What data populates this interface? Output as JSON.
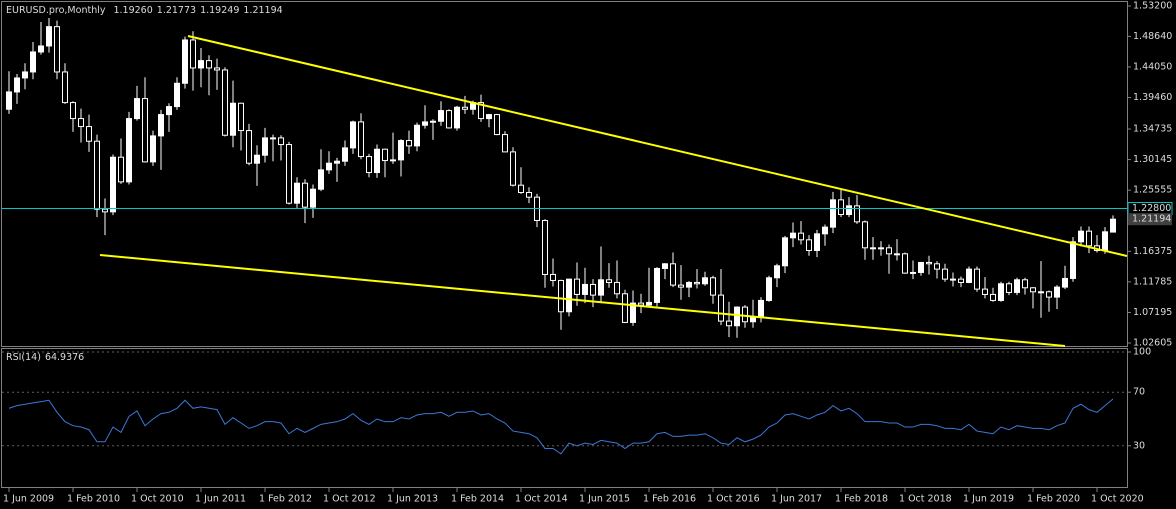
{
  "chart_data": {
    "type": "candlestick",
    "title": "EURUSD.pro,Monthly",
    "ohlc_header": [
      {
        "value": 1.1926,
        "label": "1.19260"
      },
      {
        "value": 1.21773,
        "label": "1.21773"
      },
      {
        "value": 1.19249,
        "label": "1.19249"
      },
      {
        "value": 1.21194,
        "label": "1.21194"
      }
    ],
    "categories": [
      "1 Jun 2009",
      null,
      null,
      null,
      null,
      null,
      null,
      null,
      "1 Feb 2010",
      null,
      null,
      null,
      null,
      null,
      null,
      null,
      "1 Oct 2010",
      null,
      null,
      null,
      null,
      null,
      null,
      null,
      "1 Jun 2011",
      null,
      null,
      null,
      null,
      null,
      null,
      null,
      "1 Feb 2012",
      null,
      null,
      null,
      null,
      null,
      null,
      null,
      "1 Oct 2012",
      null,
      null,
      null,
      null,
      null,
      null,
      null,
      "1 Jun 2013",
      null,
      null,
      null,
      null,
      null,
      null,
      null,
      "1 Feb 2014",
      null,
      null,
      null,
      null,
      null,
      null,
      null,
      "1 Oct 2014",
      null,
      null,
      null,
      null,
      null,
      null,
      null,
      "1 Jun 2015",
      null,
      null,
      null,
      null,
      null,
      null,
      null,
      "1 Feb 2016",
      null,
      null,
      null,
      null,
      null,
      null,
      null,
      "1 Oct 2016",
      null,
      null,
      null,
      null,
      null,
      null,
      null,
      "1 Jun 2017",
      null,
      null,
      null,
      null,
      null,
      null,
      null,
      "1 Feb 2018",
      null,
      null,
      null,
      null,
      null,
      null,
      null,
      "1 Oct 2018",
      null,
      null,
      null,
      null,
      null,
      null,
      null,
      "1 Jun 2019",
      null,
      null,
      null,
      null,
      null,
      null,
      null,
      "1 Feb 2020",
      null,
      null,
      null,
      null,
      null,
      null,
      null,
      "1 Oct 2020",
      null,
      null
    ],
    "candles": [
      [
        1.377,
        1.434,
        1.37,
        1.403
      ],
      [
        1.403,
        1.43,
        1.385,
        1.424
      ],
      [
        1.424,
        1.446,
        1.407,
        1.433
      ],
      [
        1.433,
        1.478,
        1.422,
        1.463
      ],
      [
        1.463,
        1.508,
        1.459,
        1.472
      ],
      [
        1.472,
        1.514,
        1.462,
        1.501
      ],
      [
        1.501,
        1.51,
        1.422,
        1.433
      ],
      [
        1.433,
        1.446,
        1.385,
        1.387
      ],
      [
        1.387,
        1.389,
        1.343,
        1.363
      ],
      [
        1.363,
        1.378,
        1.327,
        1.351
      ],
      [
        1.351,
        1.369,
        1.313,
        1.329
      ],
      [
        1.329,
        1.339,
        1.215,
        1.227
      ],
      [
        1.227,
        1.243,
        1.188,
        1.223
      ],
      [
        1.223,
        1.309,
        1.218,
        1.305
      ],
      [
        1.305,
        1.333,
        1.265,
        1.268
      ],
      [
        1.268,
        1.373,
        1.264,
        1.363
      ],
      [
        1.363,
        1.412,
        1.36,
        1.393
      ],
      [
        1.393,
        1.425,
        1.297,
        1.298
      ],
      [
        1.298,
        1.345,
        1.292,
        1.337
      ],
      [
        1.337,
        1.376,
        1.286,
        1.369
      ],
      [
        1.369,
        1.386,
        1.343,
        1.381
      ],
      [
        1.381,
        1.425,
        1.376,
        1.416
      ],
      [
        1.416,
        1.486,
        1.408,
        1.481
      ],
      [
        1.481,
        1.494,
        1.405,
        1.439
      ],
      [
        1.439,
        1.469,
        1.41,
        1.45
      ],
      [
        1.45,
        1.458,
        1.398,
        1.439
      ],
      [
        1.439,
        1.453,
        1.406,
        1.436
      ],
      [
        1.436,
        1.44,
        1.336,
        1.338
      ],
      [
        1.338,
        1.42,
        1.32,
        1.386
      ],
      [
        1.386,
        1.387,
        1.315,
        1.345
      ],
      [
        1.345,
        1.355,
        1.293,
        1.296
      ],
      [
        1.296,
        1.323,
        1.262,
        1.308
      ],
      [
        1.308,
        1.349,
        1.297,
        1.334
      ],
      [
        1.334,
        1.339,
        1.299,
        1.334
      ],
      [
        1.334,
        1.338,
        1.3,
        1.324
      ],
      [
        1.324,
        1.328,
        1.234,
        1.236
      ],
      [
        1.236,
        1.275,
        1.229,
        1.266
      ],
      [
        1.266,
        1.272,
        1.206,
        1.23
      ],
      [
        1.23,
        1.264,
        1.214,
        1.257
      ],
      [
        1.257,
        1.317,
        1.254,
        1.286
      ],
      [
        1.286,
        1.314,
        1.28,
        1.296
      ],
      [
        1.296,
        1.304,
        1.268,
        1.299
      ],
      [
        1.299,
        1.33,
        1.292,
        1.319
      ],
      [
        1.319,
        1.36,
        1.31,
        1.358
      ],
      [
        1.358,
        1.371,
        1.302,
        1.306
      ],
      [
        1.306,
        1.31,
        1.275,
        1.282
      ],
      [
        1.282,
        1.324,
        1.274,
        1.317
      ],
      [
        1.317,
        1.318,
        1.275,
        1.3
      ],
      [
        1.3,
        1.342,
        1.295,
        1.301
      ],
      [
        1.301,
        1.332,
        1.276,
        1.33
      ],
      [
        1.33,
        1.345,
        1.31,
        1.322
      ],
      [
        1.322,
        1.357,
        1.314,
        1.353
      ],
      [
        1.353,
        1.383,
        1.348,
        1.358
      ],
      [
        1.358,
        1.362,
        1.331,
        1.359
      ],
      [
        1.359,
        1.389,
        1.352,
        1.375
      ],
      [
        1.375,
        1.377,
        1.348,
        1.349
      ],
      [
        1.349,
        1.382,
        1.345,
        1.38
      ],
      [
        1.38,
        1.397,
        1.37,
        1.377
      ],
      [
        1.377,
        1.39,
        1.369,
        1.387
      ],
      [
        1.387,
        1.399,
        1.358,
        1.363
      ],
      [
        1.363,
        1.37,
        1.35,
        1.369
      ],
      [
        1.369,
        1.37,
        1.338,
        1.339
      ],
      [
        1.339,
        1.344,
        1.313,
        1.313
      ],
      [
        1.313,
        1.32,
        1.261,
        1.263
      ],
      [
        1.263,
        1.29,
        1.25,
        1.252
      ],
      [
        1.252,
        1.26,
        1.236,
        1.245
      ],
      [
        1.245,
        1.25,
        1.2,
        1.21
      ],
      [
        1.21,
        1.212,
        1.109,
        1.129
      ],
      [
        1.129,
        1.153,
        1.111,
        1.12
      ],
      [
        1.12,
        1.121,
        1.046,
        1.073
      ],
      [
        1.073,
        1.122,
        1.066,
        1.122
      ],
      [
        1.122,
        1.147,
        1.082,
        1.099
      ],
      [
        1.099,
        1.139,
        1.086,
        1.114
      ],
      [
        1.114,
        1.122,
        1.08,
        1.098
      ],
      [
        1.098,
        1.171,
        1.086,
        1.121
      ],
      [
        1.121,
        1.146,
        1.109,
        1.117
      ],
      [
        1.117,
        1.15,
        1.093,
        1.1
      ],
      [
        1.1,
        1.106,
        1.056,
        1.057
      ],
      [
        1.057,
        1.105,
        1.052,
        1.086
      ],
      [
        1.086,
        1.1,
        1.071,
        1.083
      ],
      [
        1.083,
        1.139,
        1.081,
        1.087
      ],
      [
        1.087,
        1.14,
        1.081,
        1.138
      ],
      [
        1.138,
        1.146,
        1.122,
        1.145
      ],
      [
        1.145,
        1.162,
        1.11,
        1.113
      ],
      [
        1.113,
        1.143,
        1.091,
        1.11
      ],
      [
        1.11,
        1.119,
        1.095,
        1.117
      ],
      [
        1.117,
        1.137,
        1.108,
        1.115
      ],
      [
        1.115,
        1.133,
        1.112,
        1.124
      ],
      [
        1.124,
        1.127,
        1.085,
        1.098
      ],
      [
        1.098,
        1.137,
        1.053,
        1.059
      ],
      [
        1.059,
        1.088,
        1.035,
        1.052
      ],
      [
        1.052,
        1.081,
        1.034,
        1.08
      ],
      [
        1.08,
        1.083,
        1.049,
        1.058
      ],
      [
        1.058,
        1.091,
        1.049,
        1.065
      ],
      [
        1.065,
        1.095,
        1.057,
        1.09
      ],
      [
        1.09,
        1.127,
        1.088,
        1.124
      ],
      [
        1.124,
        1.145,
        1.11,
        1.142
      ],
      [
        1.142,
        1.187,
        1.131,
        1.184
      ],
      [
        1.184,
        1.207,
        1.17,
        1.191
      ],
      [
        1.191,
        1.209,
        1.174,
        1.181
      ],
      [
        1.181,
        1.188,
        1.157,
        1.165
      ],
      [
        1.165,
        1.196,
        1.155,
        1.19
      ],
      [
        1.19,
        1.204,
        1.172,
        1.2
      ],
      [
        1.2,
        1.253,
        1.191,
        1.241
      ],
      [
        1.241,
        1.256,
        1.215,
        1.219
      ],
      [
        1.219,
        1.245,
        1.215,
        1.232
      ],
      [
        1.232,
        1.248,
        1.205,
        1.208
      ],
      [
        1.208,
        1.21,
        1.151,
        1.169
      ],
      [
        1.169,
        1.185,
        1.151,
        1.168
      ],
      [
        1.168,
        1.179,
        1.157,
        1.169
      ],
      [
        1.169,
        1.174,
        1.13,
        1.16
      ],
      [
        1.16,
        1.182,
        1.15,
        1.16
      ],
      [
        1.16,
        1.162,
        1.13,
        1.131
      ],
      [
        1.131,
        1.15,
        1.122,
        1.132
      ],
      [
        1.132,
        1.147,
        1.127,
        1.147
      ],
      [
        1.147,
        1.157,
        1.129,
        1.145
      ],
      [
        1.145,
        1.149,
        1.123,
        1.137
      ],
      [
        1.137,
        1.145,
        1.118,
        1.122
      ],
      [
        1.122,
        1.132,
        1.111,
        1.122
      ],
      [
        1.122,
        1.126,
        1.11,
        1.117
      ],
      [
        1.117,
        1.141,
        1.116,
        1.137
      ],
      [
        1.137,
        1.141,
        1.103,
        1.107
      ],
      [
        1.107,
        1.125,
        1.093,
        1.099
      ],
      [
        1.099,
        1.109,
        1.088,
        1.09
      ],
      [
        1.09,
        1.118,
        1.088,
        1.115
      ],
      [
        1.115,
        1.118,
        1.098,
        1.102
      ],
      [
        1.102,
        1.124,
        1.098,
        1.121
      ],
      [
        1.121,
        1.124,
        1.099,
        1.109
      ],
      [
        1.109,
        1.11,
        1.078,
        1.103
      ],
      [
        1.103,
        1.149,
        1.064,
        1.103
      ],
      [
        1.103,
        1.105,
        1.073,
        1.095
      ],
      [
        1.095,
        1.113,
        1.077,
        1.11
      ],
      [
        1.11,
        1.142,
        1.107,
        1.123
      ],
      [
        1.123,
        1.185,
        1.118,
        1.178
      ],
      [
        1.178,
        1.201,
        1.171,
        1.194
      ],
      [
        1.194,
        1.201,
        1.161,
        1.172
      ],
      [
        1.172,
        1.188,
        1.162,
        1.165
      ],
      [
        1.165,
        1.2,
        1.16,
        1.193
      ],
      [
        1.1926,
        1.21773,
        1.19249,
        1.21194
      ]
    ],
    "bull_color": "#ffffff",
    "bear_color": "#000000",
    "wick_color": "#ffffff",
    "ylim": [
      1.0216,
      1.538
    ],
    "yticks": [
      {
        "value": 1.532,
        "label": "1.53200"
      },
      {
        "value": 1.4864,
        "label": "1.48640"
      },
      {
        "value": 1.4405,
        "label": "1.44050"
      },
      {
        "value": 1.3946,
        "label": "1.39460"
      },
      1.34735,
      1.30145,
      1.25555,
      1.16375,
      1.11785,
      1.07195,
      1.02605
    ],
    "bid_line": {
      "value": 1.228,
      "label": "1.22800",
      "color": "#00c8c8"
    },
    "rsi": {
      "name": "RSI(14)",
      "color": "#3c78d8",
      "ylim": [
        0,
        100
      ],
      "yticks": [
        100,
        70,
        30
      ],
      "values": [
        58,
        60,
        61,
        62,
        63,
        64,
        55,
        48,
        45,
        44,
        42,
        33,
        33,
        44,
        40,
        52,
        56,
        45,
        50,
        54,
        55,
        58,
        64,
        58,
        59,
        58,
        57,
        46,
        51,
        47,
        43,
        45,
        48,
        48,
        47,
        39,
        43,
        40,
        43,
        46,
        47,
        48,
        50,
        54,
        49,
        46,
        50,
        48,
        48,
        51,
        50,
        53,
        54,
        54,
        55,
        52,
        55,
        55,
        56,
        53,
        54,
        50,
        47,
        41,
        40,
        39,
        36,
        28,
        28,
        24,
        32,
        30,
        32,
        31,
        34,
        33,
        32,
        28,
        32,
        32,
        33,
        39,
        40,
        37,
        37,
        38,
        38,
        39,
        36,
        32,
        31,
        36,
        33,
        35,
        38,
        44,
        47,
        53,
        54,
        52,
        50,
        53,
        55,
        60,
        56,
        58,
        54,
        48,
        48,
        48,
        47,
        47,
        44,
        44,
        46,
        46,
        45,
        43,
        43,
        42,
        46,
        41,
        40,
        39,
        44,
        42,
        45,
        44,
        43,
        43,
        42,
        45,
        47,
        58,
        61,
        57,
        55,
        60,
        64.9376
      ]
    }
  }
}
